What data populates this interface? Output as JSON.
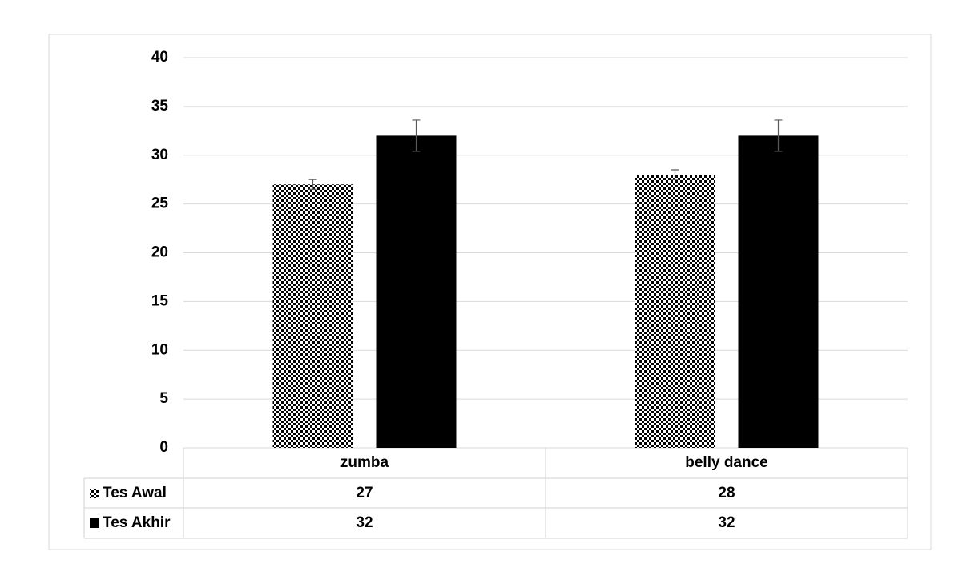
{
  "chart_data": {
    "type": "bar",
    "categories": [
      "zumba",
      "belly dance"
    ],
    "series": [
      {
        "name": "Tes Awal",
        "color": "#000000",
        "pattern": "checker",
        "values": [
          27,
          28
        ],
        "errors": [
          0.5,
          0.5
        ]
      },
      {
        "name": "Tes Akhir",
        "color": "#000000",
        "values": [
          32,
          32
        ],
        "errors": [
          1.6,
          1.6
        ]
      }
    ],
    "ylim": [
      0,
      40
    ],
    "yticks": [
      0,
      5,
      10,
      15,
      20,
      25,
      30,
      35,
      40
    ],
    "grid": true,
    "data_table": true
  }
}
